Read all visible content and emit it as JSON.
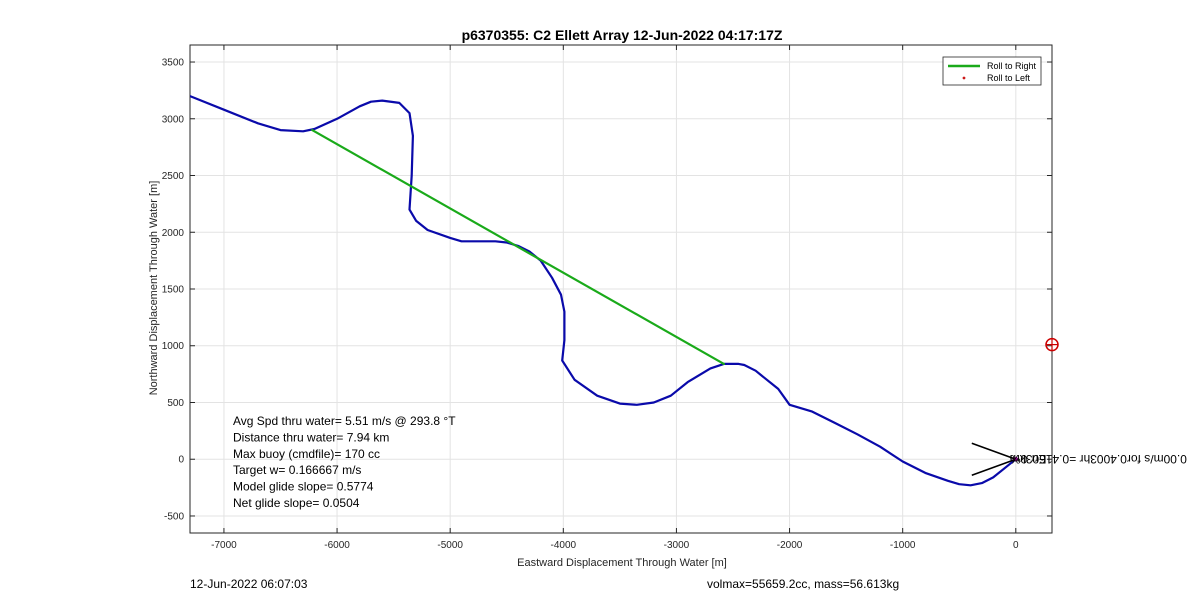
{
  "chart_data": {
    "type": "line",
    "title": "p6370355: C2 Ellett Array 12-Jun-2022 04:17:17Z",
    "xlabel": "Eastward Displacement Through Water [m]",
    "ylabel": "Northward Displacement Through Water [m]",
    "xlim": [
      -7300,
      320
    ],
    "ylim": [
      -650,
      3650
    ],
    "xticks": [
      -7000,
      -6000,
      -5000,
      -4000,
      -3000,
      -2000,
      -1000,
      0
    ],
    "yticks": [
      -500,
      0,
      500,
      1000,
      1500,
      2000,
      2500,
      3000,
      3500
    ],
    "grid": true,
    "legend_position": "top-right",
    "legend": [
      {
        "label": "Roll to Right",
        "color": "#1aaa1a",
        "marker": "line"
      },
      {
        "label": "Roll to Left",
        "color": "#cc1a1a",
        "marker": "dot"
      }
    ],
    "series": [
      {
        "color": "#0a0aaa",
        "x": [
          -7300,
          -7000,
          -6700,
          -6500,
          -6300,
          -6200,
          -6000,
          -5800,
          -5700,
          -5600,
          -5450,
          -5360,
          -5330,
          -5340,
          -5360,
          -5300,
          -5200,
          -5000,
          -4900,
          -4750,
          -4600,
          -4500,
          -4400,
          -4300,
          -4200,
          -4100,
          -4020,
          -3990,
          -3990,
          -4010,
          -3900,
          -3700,
          -3500,
          -3350,
          -3200,
          -3050,
          -2900,
          -2700,
          -2580,
          -2450,
          -2400,
          -2300,
          -2200,
          -2100,
          -2000,
          -1800,
          -1600,
          -1400,
          -1200,
          -1000,
          -800,
          -600,
          -500,
          -400,
          -300,
          -200,
          -100,
          0
        ],
        "y": [
          3200,
          3080,
          2960,
          2900,
          2890,
          2910,
          3000,
          3110,
          3150,
          3160,
          3140,
          3050,
          2850,
          2500,
          2200,
          2100,
          2020,
          1950,
          1920,
          1920,
          1920,
          1910,
          1880,
          1830,
          1750,
          1600,
          1450,
          1300,
          1050,
          870,
          700,
          560,
          490,
          480,
          500,
          560,
          680,
          800,
          840,
          840,
          830,
          780,
          700,
          620,
          480,
          420,
          320,
          220,
          110,
          -20,
          -120,
          -190,
          -220,
          -230,
          -210,
          -160,
          -80,
          0
        ]
      },
      {
        "color": "#1aaa1a",
        "x": [
          -6220,
          -2580
        ],
        "y": [
          2900,
          840
        ]
      }
    ],
    "annotations": {
      "rotated_label": "0.00m/s for0.4003hr =0.41603km",
      "rotated_label_overlay": "Err 0%",
      "arrow_tip": {
        "x": 0,
        "y": 0
      },
      "target_marker": {
        "x": 320,
        "y": 1010,
        "color": "#cc0000"
      }
    },
    "info_lines": [
      "Avg Spd thru water=  5.51 m/s @ 293.8 °T",
      "Distance thru water=  7.94 km",
      "Max buoy (cmdfile)= 170 cc",
      "Target w= 0.166667 m/s",
      "Model glide slope= 0.5774",
      "Net glide slope= 0.0504"
    ]
  },
  "footer": {
    "left": "12-Jun-2022 06:07:03",
    "right": "volmax=55659.2cc, mass=56.613kg"
  }
}
